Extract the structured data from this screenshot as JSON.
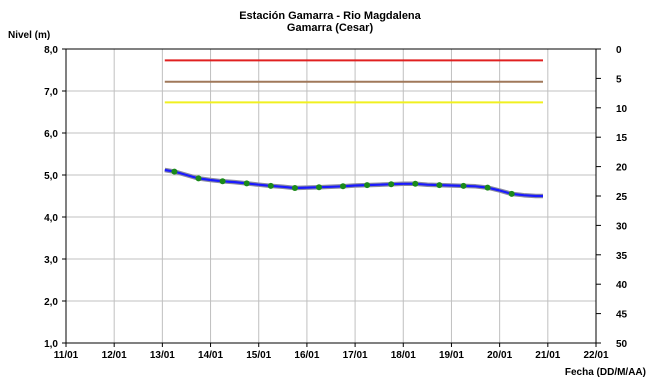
{
  "chart_data": {
    "type": "line",
    "title": "Estación Gamarra - Rio Magdalena",
    "subtitle": "Gamarra (Cesar)",
    "ylabel": "Nivel (m)",
    "xlabel": "Fecha (DD/M/AA)",
    "y2label": "",
    "ylim": [
      1.0,
      8.0
    ],
    "y_ticks": [
      "1,0",
      "2,0",
      "3,0",
      "4,0",
      "5,0",
      "6,0",
      "7,0",
      "8,0"
    ],
    "y2lim": [
      0,
      50
    ],
    "y2_ticks": [
      "0",
      "5",
      "10",
      "15",
      "20",
      "25",
      "30",
      "35",
      "40",
      "45",
      "50"
    ],
    "xlim": [
      11,
      22
    ],
    "x_ticks": [
      "11/01",
      "12/01",
      "13/01",
      "14/01",
      "15/01",
      "16/01",
      "17/01",
      "18/01",
      "19/01",
      "20/01",
      "21/01",
      "22/01"
    ],
    "grid": true,
    "thresholds": [
      {
        "color": "#e02020",
        "y": 7.73,
        "x": [
          13.05,
          20.9
        ]
      },
      {
        "color": "#a0785a",
        "y": 7.22,
        "x": [
          13.05,
          20.9
        ]
      },
      {
        "color": "#f0f020",
        "y": 6.73,
        "x": [
          13.05,
          20.9
        ]
      }
    ],
    "series": [
      {
        "color": "#1a1aff",
        "marker_color": "#1a8a1a",
        "x": [
          13.05,
          13.25,
          13.5,
          13.75,
          14.0,
          14.25,
          14.5,
          14.75,
          15.0,
          15.25,
          15.5,
          15.75,
          16.0,
          16.25,
          16.5,
          16.75,
          17.0,
          17.25,
          17.5,
          17.75,
          18.0,
          18.25,
          18.5,
          18.75,
          19.0,
          19.25,
          19.5,
          19.75,
          20.0,
          20.25,
          20.5,
          20.75,
          20.9
        ],
        "values": [
          5.12,
          5.08,
          5.0,
          4.92,
          4.88,
          4.85,
          4.83,
          4.8,
          4.77,
          4.74,
          4.72,
          4.69,
          4.7,
          4.71,
          4.72,
          4.73,
          4.75,
          4.76,
          4.77,
          4.78,
          4.79,
          4.79,
          4.77,
          4.76,
          4.75,
          4.74,
          4.73,
          4.7,
          4.63,
          4.55,
          4.52,
          4.5,
          4.5
        ],
        "marker_indices": [
          1,
          3,
          5,
          7,
          9,
          11,
          13,
          15,
          17,
          19,
          21,
          23,
          25,
          27,
          29
        ]
      }
    ]
  }
}
